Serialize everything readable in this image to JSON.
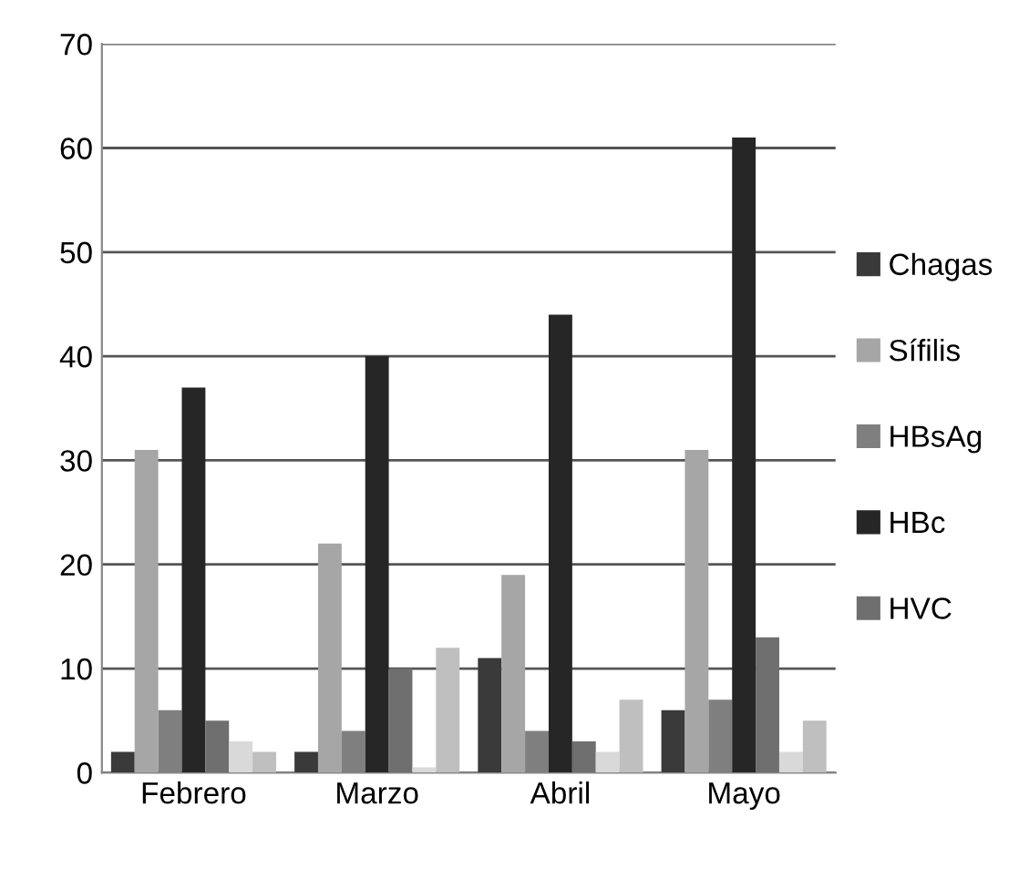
{
  "chart_data": {
    "type": "bar",
    "categories": [
      "Febrero",
      "Marzo",
      "Abril",
      "Mayo"
    ],
    "series": [
      {
        "name": "Chagas",
        "color": "#3a3a3a",
        "values": [
          2,
          2,
          11,
          6
        ]
      },
      {
        "name": "Sífilis",
        "color": "#a6a6a6",
        "values": [
          31,
          22,
          19,
          31
        ]
      },
      {
        "name": "HBsAg",
        "color": "#7f7f7f",
        "values": [
          6,
          4,
          4,
          7
        ]
      },
      {
        "name": "HBc",
        "color": "#262626",
        "values": [
          37,
          40,
          44,
          61
        ]
      },
      {
        "name": "HVC",
        "color": "#6f6f6f",
        "values": [
          5,
          10,
          3,
          13
        ]
      },
      {
        "color": "#d9d9d9",
        "values": [
          3,
          0.5,
          2,
          2
        ]
      },
      {
        "color": "#bfbfbf",
        "values": [
          2,
          12,
          7,
          5
        ]
      }
    ],
    "ylim": [
      0,
      70
    ],
    "yticks": [
      0,
      10,
      20,
      30,
      40,
      50,
      60,
      70
    ],
    "grid": "y",
    "legend": "right"
  }
}
